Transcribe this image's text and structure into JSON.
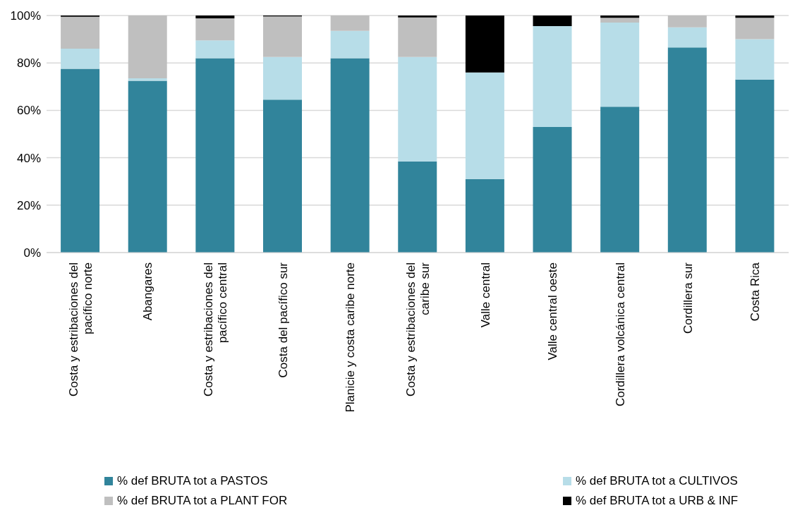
{
  "chart_data": {
    "type": "bar",
    "stacked": true,
    "categories": [
      "Costa y estribaciones del pacífico norte",
      "Abangares",
      "Costa y estribaciones del pacífico central",
      "Costa del pacífico sur",
      "Planicie y costa caribe norte",
      "Costa y estribaciones del caribe sur",
      "Valle central",
      "Valle central oeste",
      "Cordillera volcánica central",
      "Cordillera sur",
      "Costa Rica"
    ],
    "series": [
      {
        "name": "% def BRUTA tot a PASTOS",
        "color": "#31849b",
        "values": [
          77.5,
          72.5,
          82,
          64.5,
          82,
          38.5,
          31,
          53,
          61.5,
          86.5,
          73
        ]
      },
      {
        "name": "% def BRUTA tot a CULTIVOS",
        "color": "#b7dde8",
        "values": [
          8.5,
          1,
          7.5,
          18,
          11.5,
          44,
          45,
          42.5,
          35.5,
          8.5,
          17
        ]
      },
      {
        "name": "% def BRUTA tot a PLANT FOR",
        "color": "#bfbfbf",
        "values": [
          13.5,
          26.5,
          9.3,
          17.1,
          6.5,
          16.7,
          0,
          0,
          2,
          5,
          9
        ]
      },
      {
        "name": "% def BRUTA tot a URB & INF",
        "color": "#000000",
        "values": [
          0.5,
          0,
          1.2,
          0.4,
          0,
          0.8,
          24,
          4.5,
          1,
          0,
          1
        ]
      }
    ],
    "ylim": [
      0,
      100
    ],
    "yticks": [
      {
        "value": 0,
        "label": "0%"
      },
      {
        "value": 20,
        "label": "20%"
      },
      {
        "value": 40,
        "label": "40%"
      },
      {
        "value": 60,
        "label": "60%"
      },
      {
        "value": 80,
        "label": "80%"
      },
      {
        "value": 100,
        "label": "100%"
      }
    ],
    "grid": "y",
    "legend": "bottom"
  }
}
